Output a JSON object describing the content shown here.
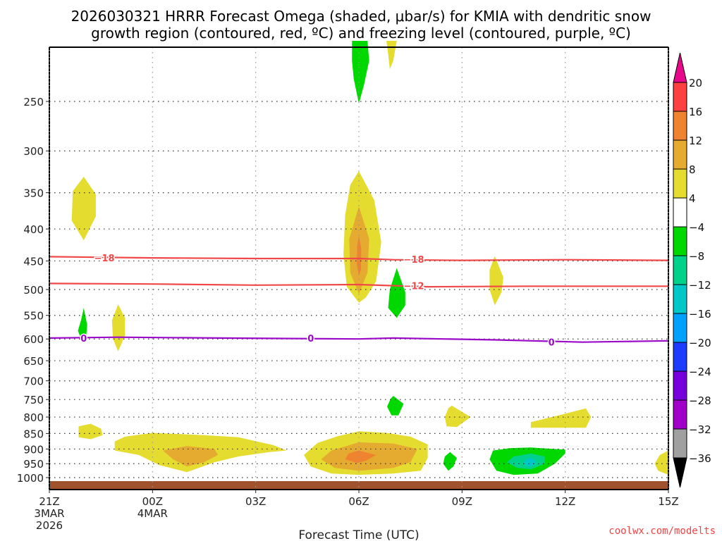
{
  "chart_data": {
    "type": "heatmap",
    "title_lines": [
      "2026030321 HRRR Forecast Omega (shaded, μbar/s) for KMIA with dendritic snow",
      "growth region (contoured, red, ºC) and freezing level (contoured, purple, ºC)"
    ],
    "xlabel": "Forecast Time (UTC)",
    "ylabel": "",
    "credit": "coolwx.com/modelts",
    "x_range_hours": [
      0,
      18
    ],
    "x_ticks": [
      {
        "hour": 0,
        "lines": [
          "21Z",
          "3MAR",
          "2026"
        ]
      },
      {
        "hour": 3,
        "lines": [
          "00Z",
          "4MAR"
        ]
      },
      {
        "hour": 6,
        "lines": [
          "03Z"
        ]
      },
      {
        "hour": 9,
        "lines": [
          "06Z"
        ]
      },
      {
        "hour": 12,
        "lines": [
          "09Z"
        ]
      },
      {
        "hour": 15,
        "lines": [
          "12Z"
        ]
      },
      {
        "hour": 18,
        "lines": [
          "15Z"
        ]
      }
    ],
    "y_axis": "pressure (hPa), log scale, inverted",
    "y_range": [
      200,
      1050
    ],
    "y_ticks": [
      250,
      300,
      350,
      400,
      450,
      500,
      550,
      600,
      650,
      700,
      750,
      800,
      850,
      900,
      950,
      1000
    ],
    "grid": true,
    "ground_color": "#a0522d",
    "colorbar": {
      "placement": "right",
      "levels": [
        -36,
        -32,
        -28,
        -24,
        -20,
        -16,
        -12,
        -8,
        -4,
        4,
        8,
        12,
        16,
        20
      ],
      "tick_labels": [
        "20",
        "16",
        "12",
        "8",
        "4",
        "−4",
        "−8",
        "−12",
        "−16",
        "−20",
        "−24",
        "−28",
        "−32",
        "−36"
      ],
      "bins": [
        {
          "range": [
            20,
            null
          ],
          "color": "#e8088c",
          "extend": true
        },
        {
          "range": [
            16,
            20
          ],
          "color": "#ff4040"
        },
        {
          "range": [
            12,
            16
          ],
          "color": "#ef832f"
        },
        {
          "range": [
            8,
            12
          ],
          "color": "#e5ab30"
        },
        {
          "range": [
            4,
            8
          ],
          "color": "#e5dc30"
        },
        {
          "range": [
            -4,
            4
          ],
          "color": "#ffffff"
        },
        {
          "range": [
            -8,
            -4
          ],
          "color": "#00d800"
        },
        {
          "range": [
            -12,
            -8
          ],
          "color": "#00d28c"
        },
        {
          "range": [
            -16,
            -12
          ],
          "color": "#00c8c8"
        },
        {
          "range": [
            -20,
            -16
          ],
          "color": "#00a0ff"
        },
        {
          "range": [
            -24,
            -20
          ],
          "color": "#1e3cff"
        },
        {
          "range": [
            -28,
            -24
          ],
          "color": "#7800dc"
        },
        {
          "range": [
            -32,
            -28
          ],
          "color": "#a000c8"
        },
        {
          "range": [
            -36,
            -32
          ],
          "color": "#a0a0a0"
        },
        {
          "range": [
            null,
            -36
          ],
          "color": "#000000",
          "extend": true
        }
      ]
    },
    "contours": [
      {
        "name": "-18C isotherm",
        "label": "−18",
        "color": "#f04848",
        "points": [
          [
            0,
            443
          ],
          [
            3,
            445
          ],
          [
            6,
            446
          ],
          [
            9,
            446
          ],
          [
            10,
            448
          ],
          [
            12,
            449
          ],
          [
            15,
            448
          ],
          [
            18,
            449
          ]
        ],
        "label_at": [
          [
            1.6,
            445
          ],
          [
            10.6,
            447
          ]
        ]
      },
      {
        "name": "-12C isotherm",
        "label": "−12",
        "color": "#f04848",
        "points": [
          [
            0,
            489
          ],
          [
            3,
            490
          ],
          [
            6,
            492
          ],
          [
            9,
            491
          ],
          [
            11,
            495
          ],
          [
            14,
            494
          ],
          [
            18,
            494
          ]
        ],
        "label_at": [
          [
            10.6,
            493
          ]
        ]
      },
      {
        "name": "0C freezing level",
        "label": "0",
        "color": "#9a0ac8",
        "points": [
          [
            0,
            598
          ],
          [
            2,
            596
          ],
          [
            5,
            598
          ],
          [
            9,
            600
          ],
          [
            10,
            598
          ],
          [
            13,
            602
          ],
          [
            15.5,
            607
          ],
          [
            18,
            604
          ]
        ],
        "label_at": [
          [
            1.0,
            598
          ],
          [
            7.6,
            598
          ],
          [
            14.6,
            607
          ]
        ]
      }
    ],
    "omega_features": [
      {
        "value_bin": "4-8",
        "hour_center": 1.0,
        "p_center": 370,
        "description": "weak upward motion"
      },
      {
        "value_bin": "4-8",
        "hour_center": 2.0,
        "p_center": 580
      },
      {
        "value_bin": "-8--4",
        "hour_center": 0.9,
        "p_center": 575
      },
      {
        "value_bin": "-8--4",
        "hour_center": 9.0,
        "p_center": 220
      },
      {
        "value_bin": "4-8",
        "hour_center": 9.9,
        "p_center": 215
      },
      {
        "value_bin": "4-12+",
        "hour_center": 9.0,
        "p_center": 420,
        "max_bin": "12-16"
      },
      {
        "value_bin": "-8--4",
        "hour_center": 10.1,
        "p_center": 515
      },
      {
        "value_bin": "4-8",
        "hour_center": 13.0,
        "p_center": 485
      },
      {
        "value_bin": "-8--4",
        "hour_center": 10.1,
        "p_center": 765
      },
      {
        "value_bin": "4-8",
        "hour_center": 11.8,
        "p_center": 790
      },
      {
        "value_bin": "4-8",
        "hour_center": 15.0,
        "p_center": 810
      },
      {
        "value_bin": "4-8",
        "hour_center": 1.2,
        "p_center": 845
      },
      {
        "value_bin": "4-12",
        "hour_center": 4.0,
        "p_center": 900,
        "max_bin": "8-12"
      },
      {
        "value_bin": "4-16",
        "hour_center": 9.2,
        "p_center": 915,
        "max_bin": "12-16"
      },
      {
        "value_bin": "-8--4",
        "hour_center": 11.6,
        "p_center": 935
      },
      {
        "value_bin": "-16--4",
        "hour_center": 14.0,
        "p_center": 935,
        "min_bin": "-16--12"
      },
      {
        "value_bin": "4-8",
        "hour_center": 18.0,
        "p_center": 945
      }
    ]
  }
}
